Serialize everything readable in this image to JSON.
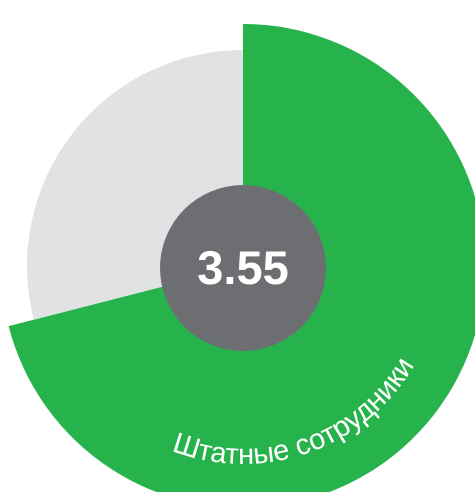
{
  "chart_data": {
    "type": "pie",
    "categories": [
      "Штатные сотрудники",
      null
    ],
    "values": [
      71,
      29
    ],
    "colors": [
      "#27b34b",
      "#e1e2e4"
    ],
    "center_label": "3.55",
    "center_color": "#6d6e71"
  }
}
